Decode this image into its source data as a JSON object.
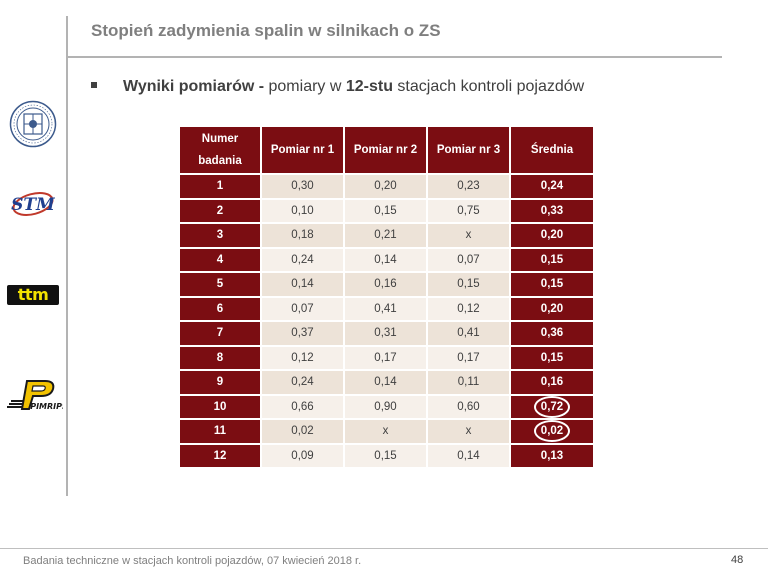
{
  "slide": {
    "title": "Stopień zadymienia spalin w silnikach o ZS",
    "bullet": {
      "part1": "Wyniki pomiarów -",
      "part2": " pomiary w ",
      "part3": "12-stu",
      "part4": " stacjach kontroli pojazdów"
    }
  },
  "logos": {
    "ttm_text": "ttm",
    "stm_text": "STM",
    "pimrips_text": "PIMRIPS"
  },
  "table": {
    "headers": {
      "num_line1": "Numer",
      "num_line2": "badania",
      "m1": "Pomiar nr 1",
      "m2": "Pomiar nr 2",
      "m3": "Pomiar nr 3",
      "avg": "Średnia"
    },
    "rows": [
      {
        "n": "1",
        "p1": "0,30",
        "p2": "0,20",
        "p3": "0,23",
        "avg": "0,24",
        "circled": false
      },
      {
        "n": "2",
        "p1": "0,10",
        "p2": "0,15",
        "p3": "0,75",
        "avg": "0,33",
        "circled": false
      },
      {
        "n": "3",
        "p1": "0,18",
        "p2": "0,21",
        "p3": "x",
        "avg": "0,20",
        "circled": false
      },
      {
        "n": "4",
        "p1": "0,24",
        "p2": "0,14",
        "p3": "0,07",
        "avg": "0,15",
        "circled": false
      },
      {
        "n": "5",
        "p1": "0,14",
        "p2": "0,16",
        "p3": "0,15",
        "avg": "0,15",
        "circled": false
      },
      {
        "n": "6",
        "p1": "0,07",
        "p2": "0,41",
        "p3": "0,12",
        "avg": "0,20",
        "circled": false
      },
      {
        "n": "7",
        "p1": "0,37",
        "p2": "0,31",
        "p3": "0,41",
        "avg": "0,36",
        "circled": false
      },
      {
        "n": "8",
        "p1": "0,12",
        "p2": "0,17",
        "p3": "0,17",
        "avg": "0,15",
        "circled": false
      },
      {
        "n": "9",
        "p1": "0,24",
        "p2": "0,14",
        "p3": "0,11",
        "avg": "0,16",
        "circled": false
      },
      {
        "n": "10",
        "p1": "0,66",
        "p2": "0,90",
        "p3": "0,60",
        "avg": "0,72",
        "circled": true
      },
      {
        "n": "11",
        "p1": "0,02",
        "p2": "x",
        "p3": "x",
        "avg": "0,02",
        "circled": true
      },
      {
        "n": "12",
        "p1": "0,09",
        "p2": "0,15",
        "p3": "0,14",
        "avg": "0,13",
        "circled": false
      }
    ]
  },
  "footer": {
    "text": "Badania techniczne w stacjach kontroli pojazdów, 07 kwiecień 2018 r.",
    "page": "48"
  },
  "colors": {
    "header_bg": "#7b0d12",
    "cell_odd": "#ede3d8",
    "cell_even": "#f6f0ea",
    "title": "#7f7f7f"
  }
}
